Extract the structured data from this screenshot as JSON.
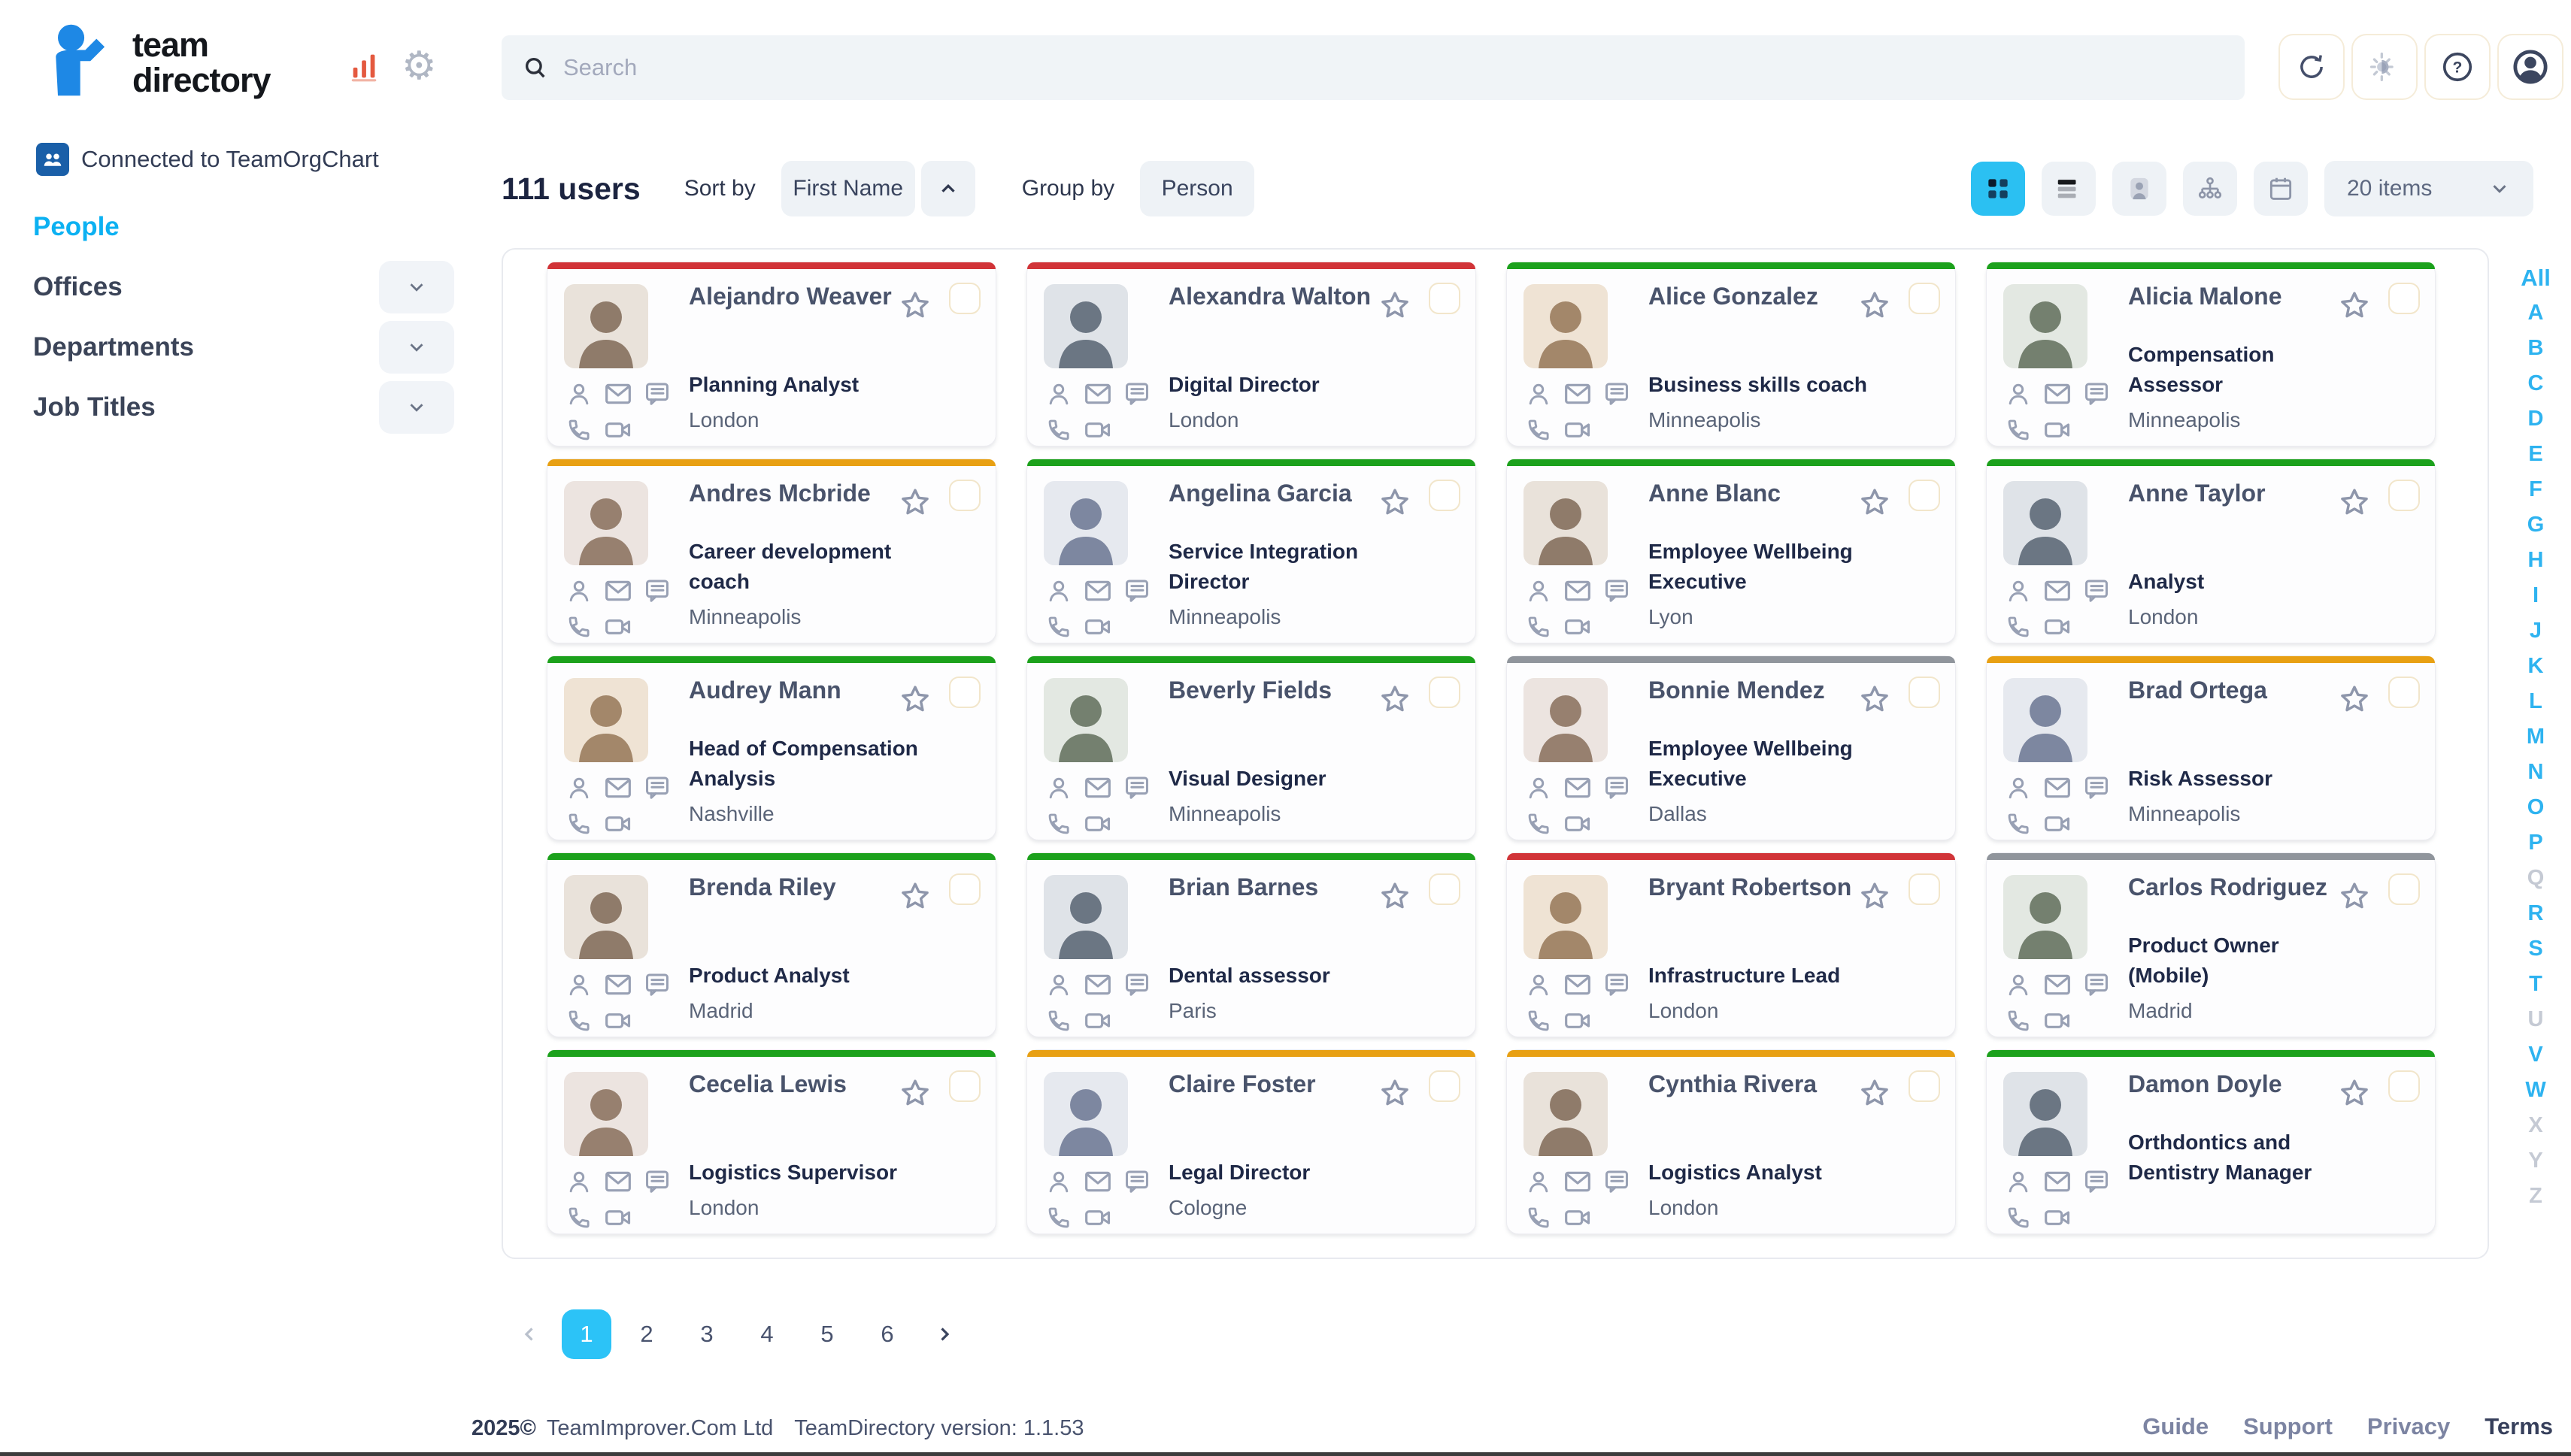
{
  "app": {
    "logo_line1": "team",
    "logo_line2": "directory",
    "connected_label": "Connected to TeamOrgChart"
  },
  "sidebar": {
    "items": [
      {
        "label": "People",
        "active": true,
        "has_chevron": false
      },
      {
        "label": "Offices",
        "active": false,
        "has_chevron": true
      },
      {
        "label": "Departments",
        "active": false,
        "has_chevron": true
      },
      {
        "label": "Job Titles",
        "active": false,
        "has_chevron": true
      }
    ]
  },
  "topbar": {
    "search_placeholder": "Search",
    "icons": [
      "refresh-icon",
      "theme-toggle-icon",
      "help-icon",
      "profile-icon"
    ]
  },
  "toolbar": {
    "users_count": "111 users",
    "sort_by_label": "Sort by",
    "sort_value": "First Name",
    "group_by_label": "Group by",
    "group_value": "Person",
    "items_per_page": "20 items",
    "view_icons": [
      "grid-view-icon",
      "list-view-icon",
      "people-view-icon",
      "orgchart-view-icon",
      "calendar-view-icon"
    ],
    "active_view": "grid"
  },
  "alphabet": {
    "letters": [
      "All",
      "A",
      "B",
      "C",
      "D",
      "E",
      "F",
      "G",
      "H",
      "I",
      "J",
      "K",
      "L",
      "M",
      "N",
      "O",
      "P",
      "Q",
      "R",
      "S",
      "T",
      "U",
      "V",
      "W",
      "X",
      "Y",
      "Z"
    ],
    "disabled": [
      "Q",
      "U",
      "X",
      "Y",
      "Z"
    ]
  },
  "cards": [
    {
      "name": "Alejandro Weaver",
      "title": "Planning Analyst",
      "location": "London",
      "accent": "red"
    },
    {
      "name": "Alexandra Walton",
      "title": "Digital Director",
      "location": "London",
      "accent": "red"
    },
    {
      "name": "Alice Gonzalez",
      "title": "Business skills coach",
      "location": "Minneapolis",
      "accent": "green"
    },
    {
      "name": "Alicia Malone",
      "title": "Compensation Assessor",
      "location": "Minneapolis",
      "accent": "green"
    },
    {
      "name": "Andres Mcbride",
      "title": "Career development coach",
      "location": "Minneapolis",
      "accent": "amber"
    },
    {
      "name": "Angelina Garcia",
      "title": "Service Integration Director",
      "location": "Minneapolis",
      "accent": "green"
    },
    {
      "name": "Anne Blanc",
      "title": "Employee Wellbeing Executive",
      "location": "Lyon",
      "accent": "green"
    },
    {
      "name": "Anne Taylor",
      "title": "Analyst",
      "location": "London",
      "accent": "green"
    },
    {
      "name": "Audrey Mann",
      "title": "Head of Compensation Analysis",
      "location": "Nashville",
      "accent": "green"
    },
    {
      "name": "Beverly Fields",
      "title": "Visual Designer",
      "location": "Minneapolis",
      "accent": "green"
    },
    {
      "name": "Bonnie Mendez",
      "title": "Employee Wellbeing Executive",
      "location": "Dallas",
      "accent": "gray"
    },
    {
      "name": "Brad Ortega",
      "title": "Risk Assessor",
      "location": "Minneapolis",
      "accent": "amber"
    },
    {
      "name": "Brenda Riley",
      "title": "Product Analyst",
      "location": "Madrid",
      "accent": "green"
    },
    {
      "name": "Brian Barnes",
      "title": "Dental assessor",
      "location": "Paris",
      "accent": "green"
    },
    {
      "name": "Bryant Robertson",
      "title": "Infrastructure Lead",
      "location": "London",
      "accent": "red"
    },
    {
      "name": "Carlos Rodriguez",
      "title": "Product Owner (Mobile)",
      "location": "Madrid",
      "accent": "gray"
    },
    {
      "name": "Cecelia Lewis",
      "title": "Logistics Supervisor",
      "location": "London",
      "accent": "green"
    },
    {
      "name": "Claire Foster",
      "title": "Legal Director",
      "location": "Cologne",
      "accent": "amber"
    },
    {
      "name": "Cynthia Rivera",
      "title": "Logistics Analyst",
      "location": "London",
      "accent": "amber"
    },
    {
      "name": "Damon Doyle",
      "title": "Orthdontics and Dentistry Manager",
      "location": "",
      "accent": "green"
    }
  ],
  "card_icons": [
    "person-icon",
    "email-icon",
    "chat-icon",
    "phone-icon",
    "video-icon",
    "star-icon",
    "checkbox"
  ],
  "pagination": {
    "pages": [
      "1",
      "2",
      "3",
      "4",
      "5",
      "6"
    ],
    "active": "1"
  },
  "footer": {
    "copyright": "2025©",
    "company": "TeamImprover.Com Ltd",
    "version": "TeamDirectory version: 1.1.53",
    "links": [
      "Guide",
      "Support",
      "Privacy",
      "Terms"
    ]
  },
  "colors": {
    "red": "#d13438",
    "green": "#1ca11c",
    "amber": "#e8a013",
    "gray": "#90959c",
    "accent-blue": "#1e88e5",
    "active-cyan": "#2bc0f2",
    "letter-blue": "#2eb3f0"
  }
}
